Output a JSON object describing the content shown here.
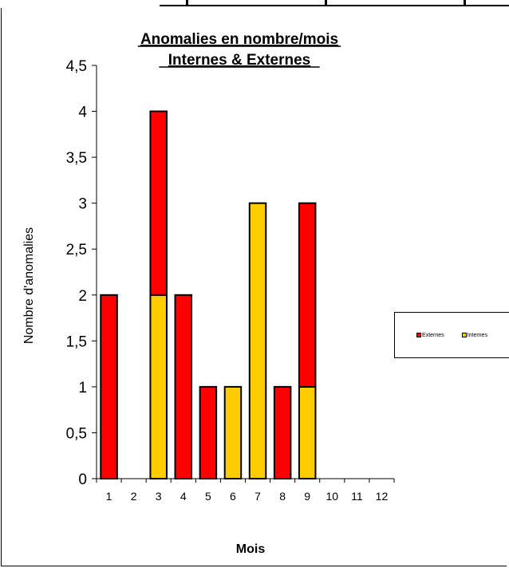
{
  "chart_data": {
    "type": "bar",
    "stacked": true,
    "title": [
      "Anomalies en nombre/mois",
      "Internes & Externes"
    ],
    "xlabel": "Mois",
    "ylabel": "Nombre d'anomalies",
    "categories": [
      "1",
      "2",
      "3",
      "4",
      "5",
      "6",
      "7",
      "8",
      "9",
      "10",
      "11",
      "12"
    ],
    "series": [
      {
        "name": "Internes",
        "color": "#FFCC00",
        "values": [
          0,
          0,
          2,
          0,
          0,
          1,
          3,
          0,
          1,
          0,
          0,
          0
        ]
      },
      {
        "name": "Externes",
        "color": "#FF0000",
        "values": [
          2,
          0,
          2,
          2,
          1,
          0,
          0,
          1,
          2,
          0,
          0,
          0
        ]
      }
    ],
    "ylim": [
      0,
      4.5
    ],
    "yticks": [
      "0",
      "0,5",
      "1",
      "1,5",
      "2",
      "2,5",
      "3",
      "3,5",
      "4",
      "4,5"
    ],
    "grid": false,
    "legend_position": "right"
  },
  "legend": [
    {
      "label": "Externes",
      "color": "#FF0000"
    },
    {
      "label": "Internes",
      "color": "#FFCC00"
    }
  ]
}
